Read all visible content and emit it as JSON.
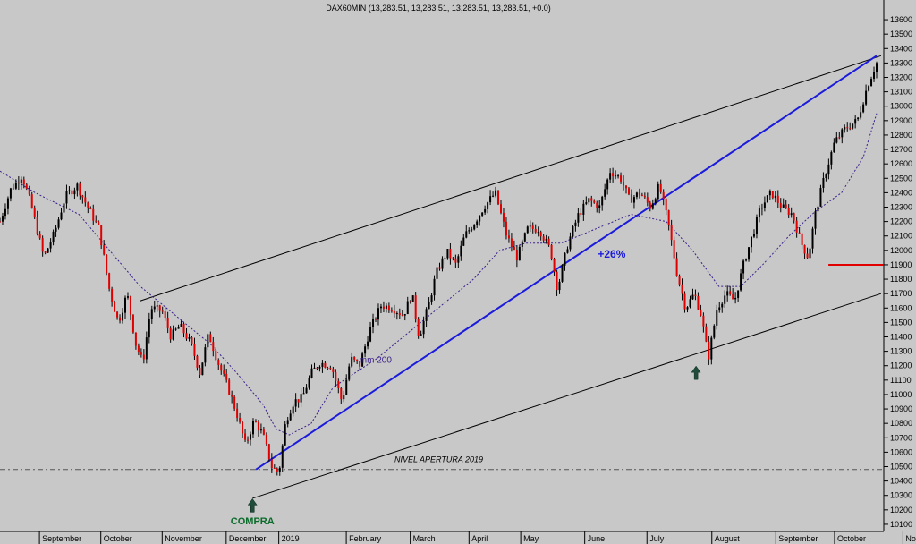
{
  "chart_data": {
    "type": "candlestick",
    "title": "DAX60MIN (13,283.51, 13,283.51, 13,283.51, 13,283.51, +0.0)",
    "y_ticks": [
      10100,
      10200,
      10300,
      10400,
      10500,
      10600,
      10700,
      10800,
      10900,
      11000,
      11100,
      11200,
      11300,
      11400,
      11500,
      11600,
      11700,
      11800,
      11900,
      12000,
      12100,
      12200,
      12300,
      12400,
      12500,
      12600,
      12700,
      12800,
      12900,
      13000,
      13100,
      13200,
      13300,
      13400,
      13500,
      13600
    ],
    "ylim": [
      10050,
      13650
    ],
    "y_axis_side": "right",
    "x_months": [
      {
        "label": "September",
        "pos": 0.045
      },
      {
        "label": "October",
        "pos": 0.115
      },
      {
        "label": "November",
        "pos": 0.185
      },
      {
        "label": "December",
        "pos": 0.258
      },
      {
        "label": "2019",
        "pos": 0.318
      },
      {
        "label": "February",
        "pos": 0.395
      },
      {
        "label": "March",
        "pos": 0.468
      },
      {
        "label": "April",
        "pos": 0.535
      },
      {
        "label": "May",
        "pos": 0.594
      },
      {
        "label": "June",
        "pos": 0.667
      },
      {
        "label": "July",
        "pos": 0.738
      },
      {
        "label": "August",
        "pos": 0.812
      },
      {
        "label": "September",
        "pos": 0.885
      },
      {
        "label": "October",
        "pos": 0.952
      },
      {
        "label": "Novemb",
        "pos": 1.03
      }
    ],
    "price_path": [
      [
        0.0,
        12200
      ],
      [
        0.012,
        12420
      ],
      [
        0.025,
        12520
      ],
      [
        0.035,
        12330
      ],
      [
        0.05,
        11950
      ],
      [
        0.062,
        12120
      ],
      [
        0.075,
        12380
      ],
      [
        0.088,
        12450
      ],
      [
        0.1,
        12300
      ],
      [
        0.113,
        12150
      ],
      [
        0.125,
        11720
      ],
      [
        0.135,
        11500
      ],
      [
        0.145,
        11700
      ],
      [
        0.155,
        11350
      ],
      [
        0.163,
        11220
      ],
      [
        0.172,
        11600
      ],
      [
        0.185,
        11580
      ],
      [
        0.195,
        11400
      ],
      [
        0.205,
        11480
      ],
      [
        0.218,
        11350
      ],
      [
        0.228,
        11150
      ],
      [
        0.238,
        11420
      ],
      [
        0.25,
        11200
      ],
      [
        0.26,
        11050
      ],
      [
        0.27,
        10870
      ],
      [
        0.28,
        10650
      ],
      [
        0.29,
        10820
      ],
      [
        0.3,
        10720
      ],
      [
        0.31,
        10500
      ],
      [
        0.318,
        10450
      ],
      [
        0.326,
        10820
      ],
      [
        0.335,
        10950
      ],
      [
        0.345,
        10980
      ],
      [
        0.355,
        11150
      ],
      [
        0.365,
        11220
      ],
      [
        0.378,
        11200
      ],
      [
        0.39,
        10950
      ],
      [
        0.4,
        11250
      ],
      [
        0.41,
        11200
      ],
      [
        0.422,
        11450
      ],
      [
        0.435,
        11620
      ],
      [
        0.448,
        11600
      ],
      [
        0.46,
        11550
      ],
      [
        0.47,
        11700
      ],
      [
        0.478,
        11400
      ],
      [
        0.488,
        11600
      ],
      [
        0.498,
        11850
      ],
      [
        0.51,
        11990
      ],
      [
        0.52,
        11900
      ],
      [
        0.53,
        12100
      ],
      [
        0.542,
        12200
      ],
      [
        0.552,
        12300
      ],
      [
        0.565,
        12400
      ],
      [
        0.578,
        12100
      ],
      [
        0.59,
        11950
      ],
      [
        0.602,
        12150
      ],
      [
        0.615,
        12150
      ],
      [
        0.628,
        12000
      ],
      [
        0.636,
        11730
      ],
      [
        0.648,
        12050
      ],
      [
        0.66,
        12250
      ],
      [
        0.672,
        12350
      ],
      [
        0.684,
        12300
      ],
      [
        0.696,
        12550
      ],
      [
        0.708,
        12500
      ],
      [
        0.718,
        12350
      ],
      [
        0.73,
        12400
      ],
      [
        0.742,
        12300
      ],
      [
        0.752,
        12450
      ],
      [
        0.762,
        12200
      ],
      [
        0.772,
        11850
      ],
      [
        0.782,
        11600
      ],
      [
        0.792,
        11700
      ],
      [
        0.8,
        11550
      ],
      [
        0.808,
        11250
      ],
      [
        0.818,
        11600
      ],
      [
        0.828,
        11700
      ],
      [
        0.838,
        11650
      ],
      [
        0.848,
        11900
      ],
      [
        0.858,
        12100
      ],
      [
        0.868,
        12300
      ],
      [
        0.88,
        12400
      ],
      [
        0.892,
        12300
      ],
      [
        0.904,
        12250
      ],
      [
        0.914,
        12050
      ],
      [
        0.922,
        11950
      ],
      [
        0.93,
        12250
      ],
      [
        0.94,
        12500
      ],
      [
        0.952,
        12750
      ],
      [
        0.965,
        12850
      ],
      [
        0.978,
        12900
      ],
      [
        0.99,
        13150
      ],
      [
        1.0,
        13300
      ]
    ],
    "moving_average": {
      "label": "mm 200",
      "color": "#3b1f8a",
      "points": [
        [
          0.0,
          12550
        ],
        [
          0.04,
          12400
        ],
        [
          0.09,
          12250
        ],
        [
          0.125,
          12000
        ],
        [
          0.16,
          11750
        ],
        [
          0.2,
          11550
        ],
        [
          0.24,
          11350
        ],
        [
          0.27,
          11150
        ],
        [
          0.3,
          10930
        ],
        [
          0.315,
          10760
        ],
        [
          0.33,
          10720
        ],
        [
          0.355,
          10800
        ],
        [
          0.38,
          11050
        ],
        [
          0.4,
          11130
        ],
        [
          0.43,
          11250
        ],
        [
          0.46,
          11400
        ],
        [
          0.5,
          11600
        ],
        [
          0.54,
          11800
        ],
        [
          0.57,
          12000
        ],
        [
          0.6,
          12050
        ],
        [
          0.64,
          12050
        ],
        [
          0.68,
          12150
        ],
        [
          0.72,
          12250
        ],
        [
          0.76,
          12200
        ],
        [
          0.79,
          12000
        ],
        [
          0.82,
          11750
        ],
        [
          0.845,
          11750
        ],
        [
          0.87,
          11900
        ],
        [
          0.9,
          12100
        ],
        [
          0.93,
          12270
        ],
        [
          0.96,
          12400
        ],
        [
          0.985,
          12650
        ],
        [
          1.0,
          12950
        ]
      ]
    },
    "trendlines": [
      {
        "color": "#000000",
        "from": [
          0.16,
          11650
        ],
        "to": [
          1.005,
          13350
        ]
      },
      {
        "color": "#000000",
        "from": [
          0.288,
          10280
        ],
        "to": [
          1.005,
          11700
        ]
      },
      {
        "color": "#1b1bdb",
        "from": [
          0.292,
          10480
        ],
        "to": [
          1.0,
          13350
        ]
      }
    ],
    "reference_lines": [
      {
        "label": "NIVEL APERTURA 2019",
        "value": 10480,
        "style": "dashdot"
      },
      {
        "label": "",
        "value": 11900,
        "color": "#e00000",
        "from": 0.945,
        "to": 1.008
      }
    ],
    "annotations": [
      {
        "text": "+26%",
        "x": 0.682,
        "y": 11950,
        "color": "#1b1bdb"
      },
      {
        "text": "COMPRA",
        "x": 0.288,
        "y": 10100,
        "color": "#0a6b2a"
      },
      {
        "text": "mm 200",
        "x": 0.41,
        "y": 11220,
        "color": "#3b1f8a"
      },
      {
        "text": "NIVEL APERTURA 2019",
        "x": 0.45,
        "y": 10530,
        "color": "#000000"
      }
    ],
    "arrows": [
      {
        "x": 0.288,
        "y": 10240
      },
      {
        "x": 0.794,
        "y": 11160
      }
    ],
    "grid": false,
    "colors": {
      "background": "#c8c8c8",
      "up_candle": "#000000",
      "down_candle": "#e00000"
    }
  }
}
